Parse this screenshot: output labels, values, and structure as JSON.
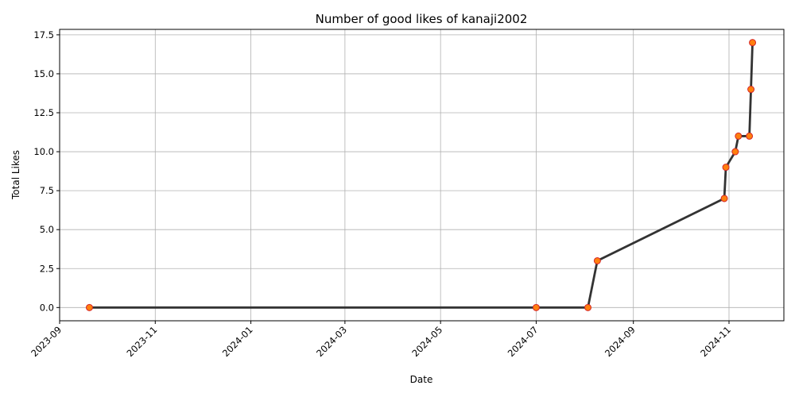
{
  "chart_data": {
    "type": "line",
    "title": "Number of good likes of kanaji2002",
    "xlabel": "Date",
    "ylabel": "Total Likes",
    "x_scale": "date",
    "xlim": [
      "2023-09-01",
      "2024-12-06"
    ],
    "ylim": [
      -0.85,
      17.85
    ],
    "grid": true,
    "x_ticks": [
      "2023-09",
      "2023-11",
      "2024-01",
      "2024-03",
      "2024-05",
      "2024-07",
      "2024-09",
      "2024-11"
    ],
    "y_ticks": [
      "0.0",
      "2.5",
      "5.0",
      "7.5",
      "10.0",
      "12.5",
      "15.0",
      "17.5"
    ],
    "series": [
      {
        "x": [
          "2023-09-20",
          "2024-07-01",
          "2024-08-03",
          "2024-08-09",
          "2024-10-29",
          "2024-10-30",
          "2024-11-05",
          "2024-11-07",
          "2024-11-14",
          "2024-11-15",
          "2024-11-16"
        ],
        "y": [
          0,
          0,
          0,
          3,
          7,
          9,
          10,
          11,
          11,
          14,
          17
        ],
        "line_color": "#333333",
        "marker_face": "#ff7f0e",
        "marker_edge": "#d62728"
      }
    ]
  }
}
